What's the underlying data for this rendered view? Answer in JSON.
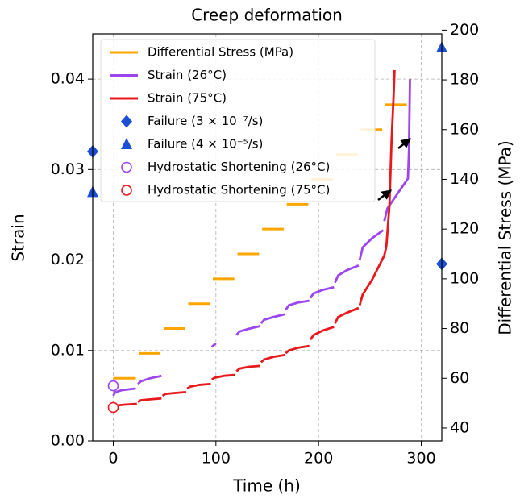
{
  "chart_data": {
    "type": "line",
    "title": "Creep deformation",
    "xlabel": "Time (h)",
    "ylabel": "Strain",
    "y2label": "Differential Stress (MPa)",
    "xlim": [
      -20,
      320
    ],
    "xticks": [
      0,
      100,
      200,
      300
    ],
    "ylim": [
      0,
      0.045
    ],
    "yticks": [
      {
        "value": 0,
        "label": "0.00"
      },
      0.01,
      0.02,
      0.03,
      0.04
    ],
    "y2lim": [
      34.8,
      198.5
    ],
    "y2ticks": [
      40,
      60,
      80,
      100,
      120,
      140,
      160,
      180,
      200
    ],
    "grid": true,
    "legend": "upper left",
    "series": [
      {
        "name": "Differential Stress (MPa)",
        "color": "#ffa500",
        "axis": "y2",
        "x": [
          0,
          22,
          23,
          25,
          46,
          47,
          49,
          70,
          71,
          73,
          94,
          95,
          97,
          118,
          119,
          121,
          142,
          143,
          145,
          166,
          167,
          169,
          190,
          191,
          193,
          214,
          215,
          217,
          238,
          239,
          241,
          262,
          263,
          265,
          286,
          287,
          288,
          290
        ],
        "values": [
          60,
          60,
          null,
          70,
          70,
          null,
          80,
          80,
          null,
          90,
          90,
          null,
          100,
          100,
          null,
          110,
          110,
          null,
          120,
          120,
          null,
          130,
          130,
          null,
          140,
          140,
          null,
          150,
          150,
          null,
          160,
          160,
          null,
          170,
          170,
          null,
          180,
          180
        ]
      },
      {
        "name": "Strain (26°C)",
        "color": "#9d46ee",
        "x": [
          0,
          2,
          8,
          22,
          23,
          24,
          27,
          35,
          47,
          48,
          96,
          99,
          100,
          101,
          120,
          123,
          132,
          143,
          143.5,
          144,
          147,
          156,
          167,
          167.5,
          168,
          171,
          180,
          191,
          191.5,
          192,
          195,
          204,
          215,
          215.5,
          216,
          219,
          228,
          239,
          239.5,
          240,
          243,
          252,
          263,
          263.5,
          264,
          267,
          276,
          287,
          288,
          289
        ],
        "values": [
          0.005,
          0.0054,
          0.0056,
          0.0058,
          null,
          0.0063,
          0.0066,
          0.0069,
          0.0072,
          null,
          0.0104,
          0.0107,
          0.0108,
          null,
          0.0117,
          0.0121,
          0.0124,
          0.0127,
          null,
          0.013,
          0.0134,
          0.0137,
          0.014,
          null,
          0.0145,
          0.015,
          0.0153,
          0.0155,
          null,
          0.0158,
          0.0163,
          0.0167,
          0.017,
          null,
          0.0175,
          0.0183,
          0.0189,
          0.0194,
          null,
          0.02,
          0.0214,
          0.0224,
          0.0233,
          null,
          0.0243,
          0.0257,
          0.0272,
          0.029,
          0.032,
          0.04
        ]
      },
      {
        "name": "Strain (75°C)",
        "color": "#e8191c",
        "x": [
          0,
          2,
          10,
          23,
          23.5,
          24,
          27,
          36,
          47,
          47.5,
          48,
          51,
          60,
          71,
          71.5,
          72,
          75,
          84,
          95,
          95.5,
          96,
          99,
          108,
          119,
          119.5,
          120,
          123,
          132,
          143,
          143.5,
          144,
          147,
          156,
          167,
          167.5,
          168,
          171,
          180,
          191,
          191.5,
          192,
          195,
          204,
          215,
          215.5,
          216,
          219,
          228,
          239,
          239.5,
          240,
          243,
          252,
          264,
          266,
          269,
          271,
          273,
          274
        ],
        "values": [
          0.0037,
          0.0039,
          0.004,
          0.0041,
          null,
          0.0043,
          0.0045,
          0.0046,
          0.0047,
          null,
          0.005,
          0.0052,
          0.0053,
          0.0054,
          null,
          0.0058,
          0.006,
          0.0062,
          0.0063,
          null,
          0.0068,
          0.007,
          0.0072,
          0.0073,
          null,
          0.0077,
          0.008,
          0.0082,
          0.0083,
          null,
          0.0087,
          0.009,
          0.0093,
          0.0095,
          null,
          0.0097,
          0.01,
          0.0103,
          0.0105,
          null,
          0.0112,
          0.0117,
          0.0122,
          0.0126,
          null,
          0.013,
          0.0137,
          0.0142,
          0.0147,
          null,
          0.015,
          0.0162,
          0.0178,
          0.0205,
          0.0215,
          0.026,
          0.033,
          0.038,
          0.041
        ]
      },
      {
        "name": "Failure (3 × 10⁻⁷/s)",
        "color": "#1a4fd6",
        "marker": "diamond",
        "x": [
          -20,
          320
        ],
        "values": [
          0.032,
          106
        ],
        "axes": [
          "y",
          "y2"
        ]
      },
      {
        "name": "Failure (4 × 10⁻⁵/s)",
        "color": "#1a4fd6",
        "marker": "triangle",
        "x": [
          -20,
          320
        ],
        "values": [
          0.0275,
          193
        ],
        "axes": [
          "y",
          "y2"
        ]
      },
      {
        "name": "Hydrostatic Shortening (26°C)",
        "color": "#9d46ee",
        "marker": "circle",
        "x": [
          0
        ],
        "values": [
          0.0061
        ],
        "axes": [
          "y"
        ]
      },
      {
        "name": "Hydrostatic Shortening (75°C)",
        "color": "#e8191c",
        "marker": "circle",
        "x": [
          0
        ],
        "values": [
          0.0037
        ],
        "axes": [
          "y"
        ]
      }
    ]
  }
}
